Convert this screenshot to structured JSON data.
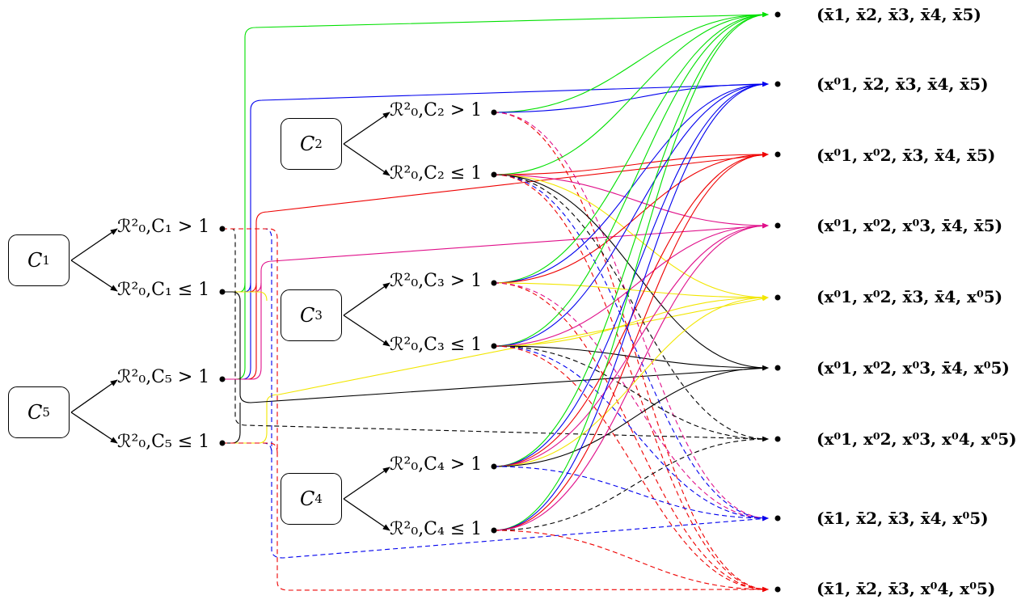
{
  "compartments": [
    {
      "id": "C1",
      "label": "C",
      "index": "1",
      "gt": "ℛ²₀,C₁ > 1",
      "le": "ℛ²₀,C₁ ≤ 1"
    },
    {
      "id": "C2",
      "label": "C",
      "index": "2",
      "gt": "ℛ²₀,C₂ > 1",
      "le": "ℛ²₀,C₂ ≤ 1"
    },
    {
      "id": "C3",
      "label": "C",
      "index": "3",
      "gt": "ℛ²₀,C₃ > 1",
      "le": "ℛ²₀,C₃ ≤ 1"
    },
    {
      "id": "C4",
      "label": "C",
      "index": "4",
      "gt": "ℛ²₀,C₄ > 1",
      "le": "ℛ²₀,C₄ ≤ 1"
    },
    {
      "id": "C5",
      "label": "C",
      "index": "5",
      "gt": "ℛ²₀,C₅ > 1",
      "le": "ℛ²₀,C₅ ≤ 1"
    }
  ],
  "states": [
    "(x̄1, x̄2, x̄3, x̄4, x̄5)",
    "(x⁰1, x̄2, x̄3, x̄4, x̄5)",
    "(x⁰1, x⁰2, x̄3, x̄4, x̄5)",
    "(x⁰1, x⁰2, x⁰3, x̄4, x̄5)",
    "(x⁰1, x⁰2, x̄3, x̄4, x⁰5)",
    "(x⁰1, x⁰2, x⁰3, x̄4, x⁰5)",
    "(x⁰1, x⁰2, x⁰3, x⁰4, x⁰5)",
    "(x̄1, x̄2, x̄3, x̄4, x⁰5)",
    "(x̄1, x̄2, x̄3, x⁰4, x⁰5)"
  ],
  "colors": {
    "green": "#00e000",
    "blue": "#0000ee",
    "red": "#ee0000",
    "magenta": "#e0108a",
    "yellow": "#f2e600",
    "black": "#000000"
  }
}
